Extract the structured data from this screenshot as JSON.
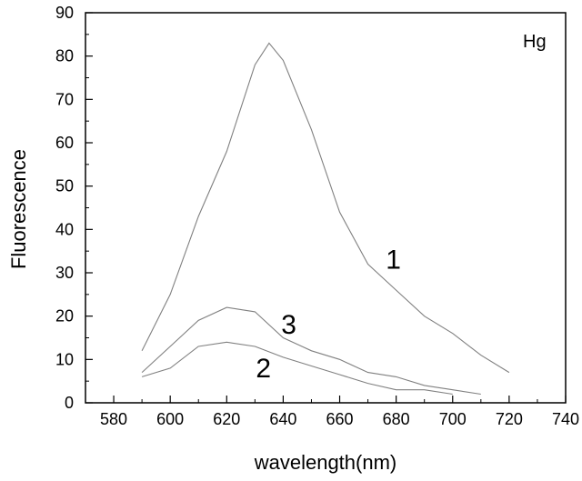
{
  "chart_data": {
    "type": "line",
    "title": "",
    "xlabel": "wavelength(nm)",
    "ylabel": "Fluorescence",
    "xlim": [
      570,
      740
    ],
    "ylim": [
      0,
      90
    ],
    "xticks": [
      580,
      600,
      620,
      640,
      660,
      680,
      700,
      720,
      740
    ],
    "yticks": [
      0,
      10,
      20,
      30,
      40,
      50,
      60,
      70,
      80,
      90
    ],
    "grid": false,
    "annotation": "Hg",
    "series": [
      {
        "name": "1",
        "color": "#808080",
        "x": [
          590,
          600,
          610,
          620,
          630,
          635,
          640,
          650,
          660,
          670,
          680,
          690,
          700,
          710,
          720
        ],
        "y": [
          12,
          25,
          43,
          58,
          78,
          83,
          79,
          63,
          44,
          32,
          26,
          20,
          16,
          11,
          7
        ]
      },
      {
        "name": "2",
        "color": "#808080",
        "x": [
          590,
          600,
          610,
          620,
          630,
          640,
          650,
          660,
          670,
          680,
          690,
          700
        ],
        "y": [
          6,
          8,
          13,
          14,
          13,
          10.5,
          8.5,
          6.5,
          4.5,
          3,
          3,
          2
        ]
      },
      {
        "name": "3",
        "color": "#808080",
        "x": [
          590,
          600,
          610,
          620,
          630,
          640,
          650,
          660,
          670,
          680,
          690,
          700,
          710
        ],
        "y": [
          7,
          13,
          19,
          22,
          21,
          15,
          12,
          10,
          7,
          6,
          4,
          3,
          2
        ]
      }
    ]
  }
}
